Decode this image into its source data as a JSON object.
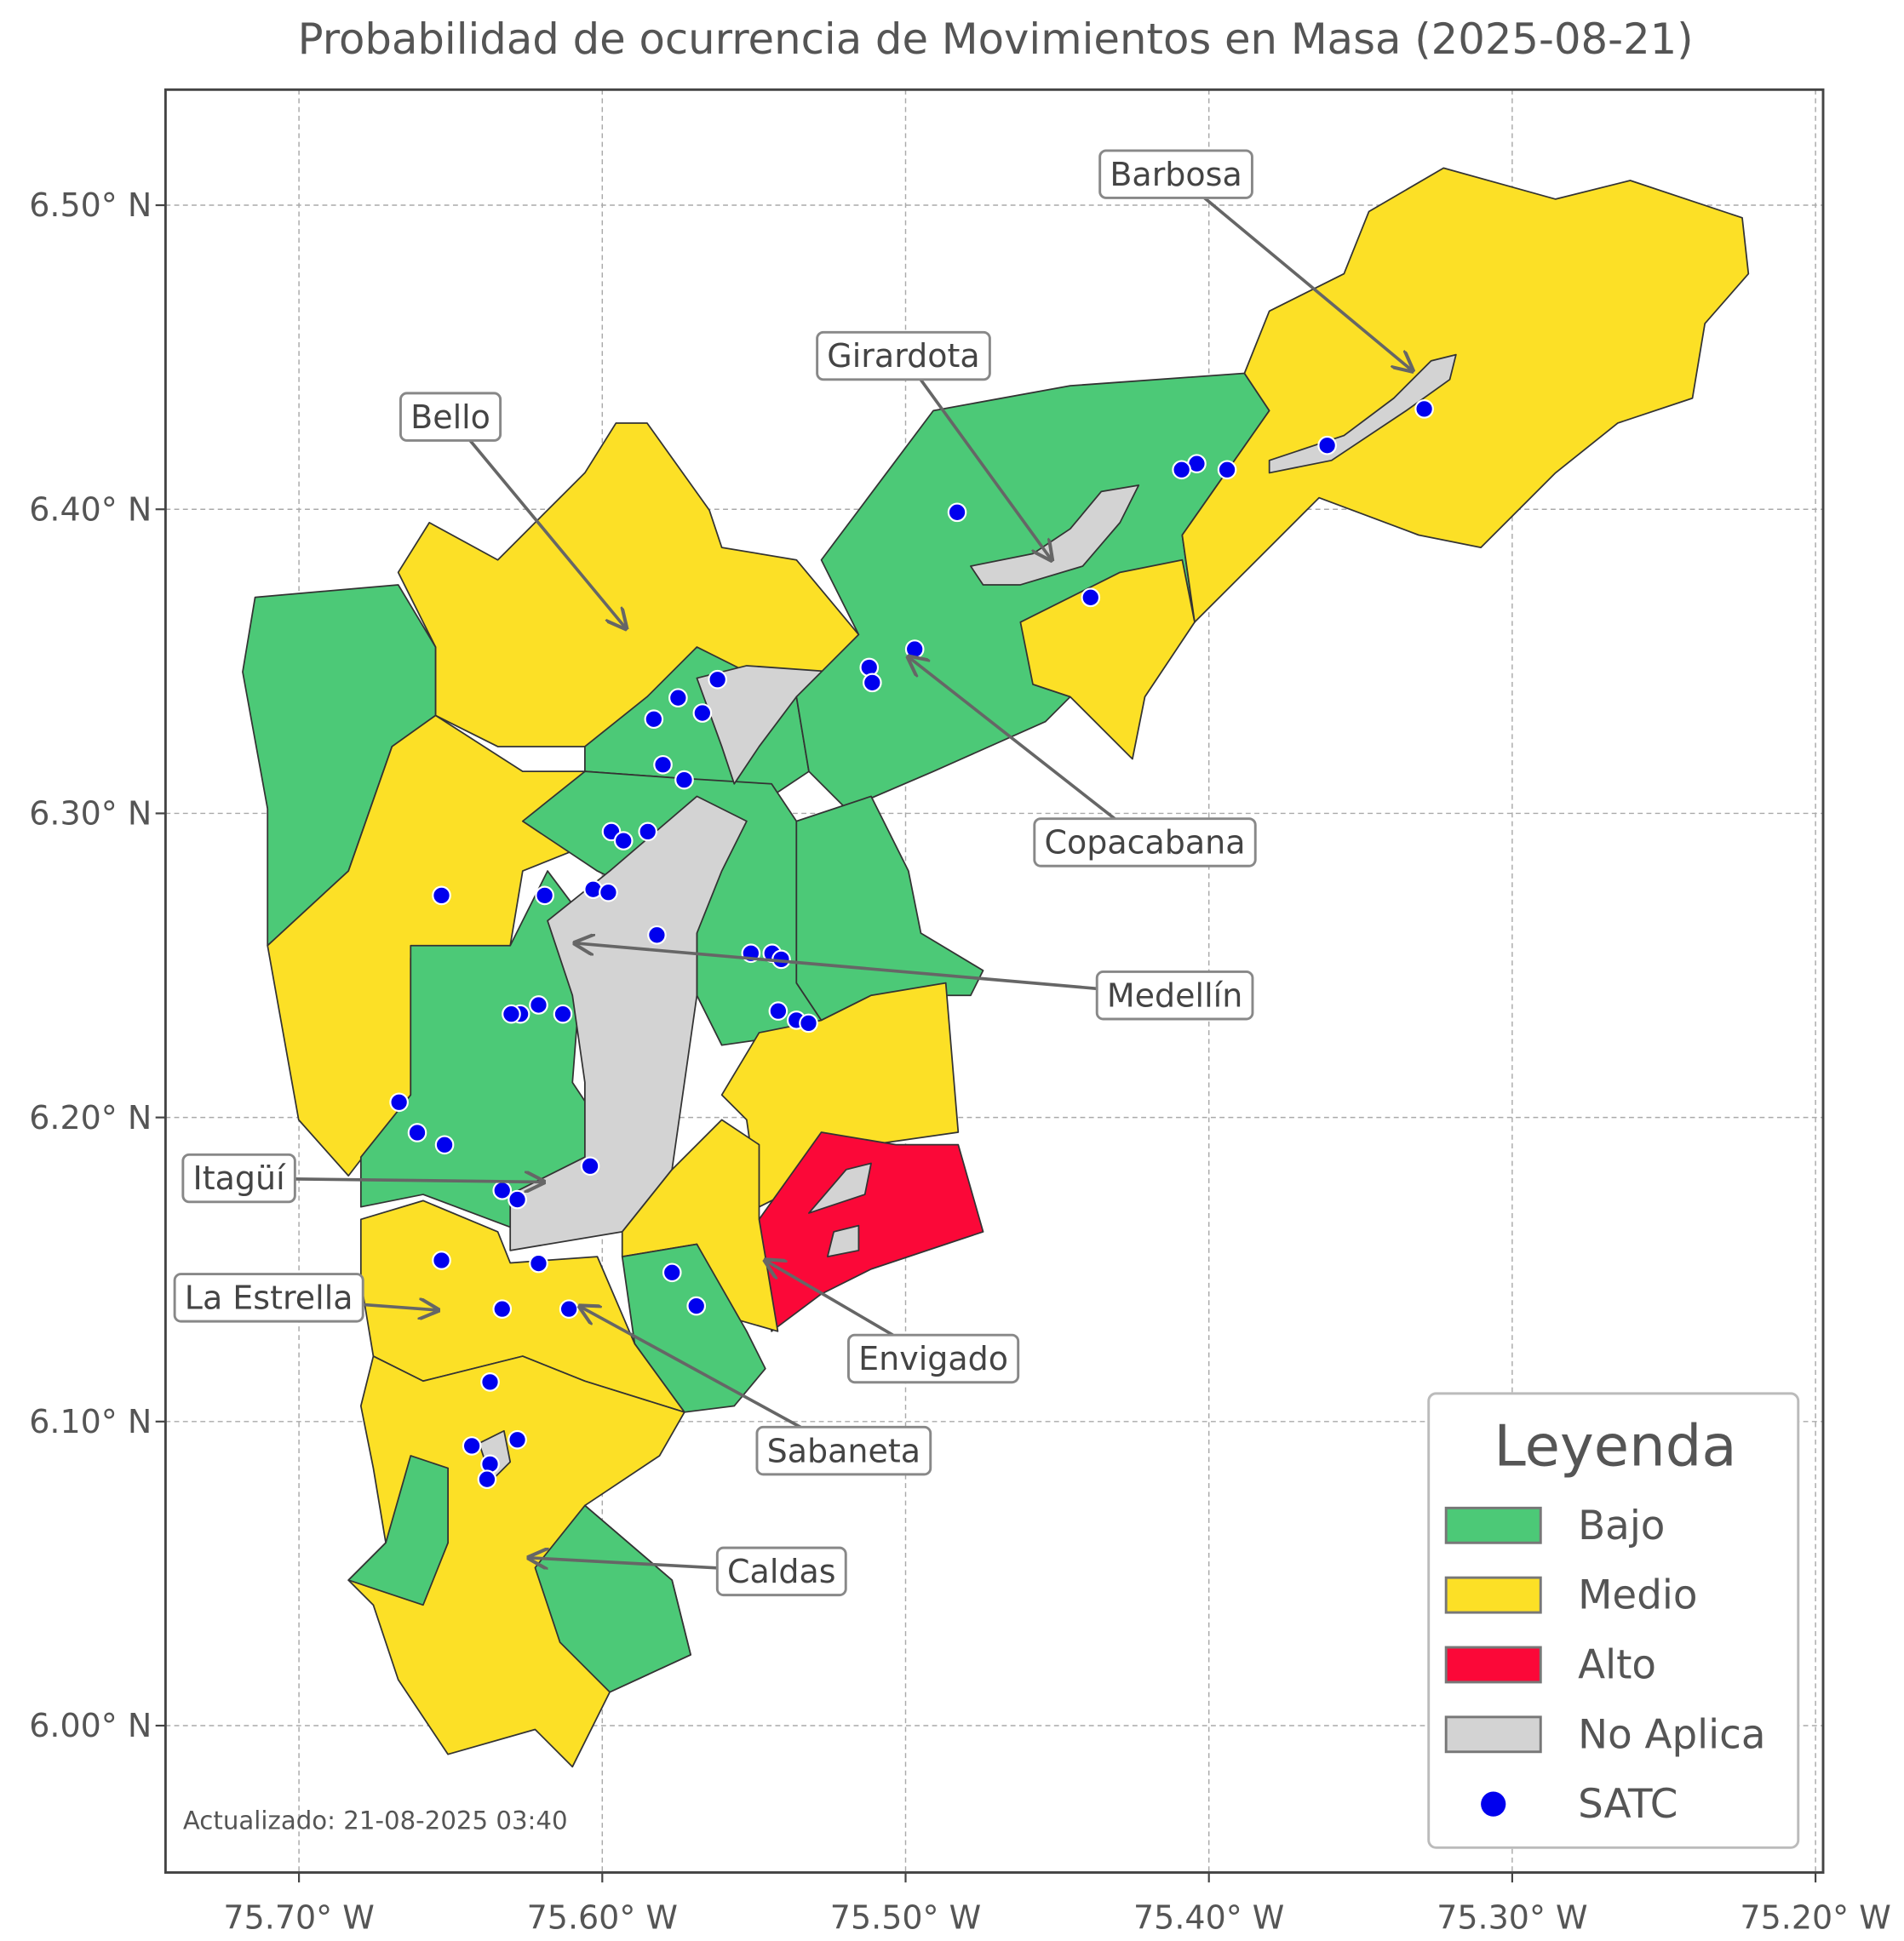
{
  "chart_data": {
    "type": "map",
    "title": "Probabilidad de ocurrencia de Movimientos en Masa (2025-08-21)",
    "xlim": [
      -75.744,
      -75.1975
    ],
    "ylim": [
      5.9517,
      6.538
    ],
    "xticks": [
      {
        "value": -75.7,
        "label": "75.70° W"
      },
      {
        "value": -75.6,
        "label": "75.60° W"
      },
      {
        "value": -75.5,
        "label": "75.50° W"
      },
      {
        "value": -75.4,
        "label": "75.40° W"
      },
      {
        "value": -75.3,
        "label": "75.30° W"
      },
      {
        "value": -75.2,
        "label": "75.20° W"
      }
    ],
    "yticks": [
      {
        "value": 6.0,
        "label": "6.00° N"
      },
      {
        "value": 6.1,
        "label": "6.10° N"
      },
      {
        "value": 6.2,
        "label": "6.20° N"
      },
      {
        "value": 6.3,
        "label": "6.30° N"
      },
      {
        "value": 6.4,
        "label": "6.40° N"
      },
      {
        "value": 6.5,
        "label": "6.50° N"
      }
    ],
    "grid": true,
    "legend": {
      "title": "Leyenda",
      "position": "lower right",
      "entries": [
        {
          "label": "Bajo",
          "color": "#4cc977"
        },
        {
          "label": "Medio",
          "color": "#fce026"
        },
        {
          "label": "Alto",
          "color": "#fb0838"
        },
        {
          "label": "No Aplica",
          "color": "#d3d3d3"
        }
      ]
    },
    "series": [
      {
        "name": "SATC",
        "color": "#0000ee",
        "x": [
          -75.329,
          -75.361,
          -75.394,
          -75.404,
          -75.409,
          -75.483,
          -75.439,
          -75.497,
          -75.512,
          -75.511,
          -75.562,
          -75.575,
          -75.567,
          -75.583,
          -75.58,
          -75.573,
          -75.597,
          -75.593,
          -75.585,
          -75.653,
          -75.619,
          -75.603,
          -75.598,
          -75.582,
          -75.551,
          -75.544,
          -75.541,
          -75.542,
          -75.536,
          -75.532,
          -75.621,
          -75.627,
          -75.63,
          -75.613,
          -75.667,
          -75.661,
          -75.652,
          -75.604,
          -75.633,
          -75.628,
          -75.653,
          -75.621,
          -75.577,
          -75.569,
          -75.633,
          -75.611,
          -75.637,
          -75.643,
          -75.628,
          -75.637,
          -75.638
        ],
        "y": [
          6.433,
          6.421,
          6.413,
          6.415,
          6.413,
          6.399,
          6.371,
          6.354,
          6.348,
          6.343,
          6.344,
          6.338,
          6.333,
          6.331,
          6.316,
          6.311,
          6.294,
          6.291,
          6.294,
          6.273,
          6.273,
          6.275,
          6.274,
          6.26,
          6.254,
          6.254,
          6.252,
          6.235,
          6.232,
          6.231,
          6.237,
          6.234,
          6.234,
          6.234,
          6.205,
          6.195,
          6.191,
          6.184,
          6.176,
          6.173,
          6.153,
          6.152,
          6.149,
          6.138,
          6.137,
          6.137,
          6.113,
          6.092,
          6.094,
          6.086,
          6.081
        ]
      }
    ],
    "annotations": [
      "Barbosa",
      "Girardota",
      "Bello",
      "Copacabana",
      "Medellín",
      "Itagüí",
      "La Estrella",
      "Envigado",
      "Sabaneta",
      "Caldas"
    ],
    "footnote": "Actualizado: 21-08-2025 03:40"
  }
}
